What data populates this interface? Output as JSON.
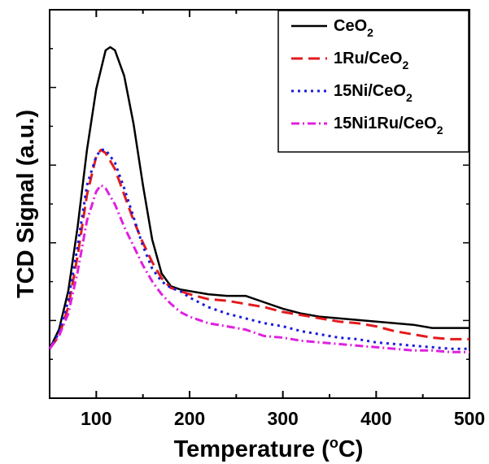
{
  "chart_data": {
    "type": "line",
    "xlabel": "Temperature (oC)",
    "xlabel_parts": {
      "main": "Temperature (",
      "sup": "o",
      "unit": "C)"
    },
    "ylabel": "TCD Signal (a.u.)",
    "xlim": [
      50,
      500
    ],
    "ylim": [
      0,
      1
    ],
    "x_ticks": [
      100,
      200,
      300,
      400,
      500
    ],
    "x_tick_labels": [
      "100",
      "200",
      "300",
      "400",
      "500"
    ],
    "y_ticks": [],
    "grid": false,
    "legend_position": "top-right",
    "series": [
      {
        "name": "CeO2",
        "name_parts": {
          "main": "CeO",
          "sub": "2",
          "tail": ""
        },
        "color": "#000000",
        "dash": "solid",
        "x": [
          50,
          60,
          70,
          80,
          90,
          100,
          110,
          115,
          120,
          130,
          140,
          150,
          160,
          170,
          180,
          190,
          200,
          220,
          240,
          260,
          280,
          300,
          320,
          340,
          360,
          380,
          400,
          420,
          440,
          460,
          480,
          500
        ],
        "y": [
          0.06,
          0.12,
          0.24,
          0.44,
          0.68,
          0.87,
          0.99,
          1.0,
          0.99,
          0.91,
          0.76,
          0.57,
          0.4,
          0.295,
          0.255,
          0.245,
          0.24,
          0.23,
          0.225,
          0.225,
          0.205,
          0.185,
          0.17,
          0.16,
          0.155,
          0.15,
          0.145,
          0.14,
          0.135,
          0.125,
          0.125,
          0.125
        ]
      },
      {
        "name": "1Ru/CeO2",
        "name_parts": {
          "main": "1Ru/CeO",
          "sub": "2",
          "tail": ""
        },
        "color": "#e41a1c",
        "dash": "14,7",
        "x": [
          50,
          60,
          70,
          80,
          90,
          100,
          105,
          110,
          120,
          130,
          140,
          150,
          160,
          170,
          180,
          190,
          200,
          220,
          240,
          260,
          280,
          300,
          320,
          340,
          360,
          380,
          400,
          420,
          440,
          460,
          480,
          500
        ],
        "y": [
          0.06,
          0.1,
          0.19,
          0.35,
          0.54,
          0.66,
          0.68,
          0.67,
          0.62,
          0.54,
          0.46,
          0.39,
          0.33,
          0.28,
          0.25,
          0.24,
          0.23,
          0.215,
          0.21,
          0.2,
          0.19,
          0.175,
          0.165,
          0.155,
          0.145,
          0.14,
          0.13,
          0.115,
          0.105,
          0.095,
          0.09,
          0.09
        ]
      },
      {
        "name": "15Ni/CeO2",
        "name_parts": {
          "main": "15Ni/CeO",
          "sub": "2",
          "tail": ""
        },
        "color": "#1a1adb",
        "dash": "3,5",
        "x": [
          50,
          60,
          70,
          80,
          90,
          100,
          105,
          110,
          120,
          130,
          140,
          150,
          160,
          170,
          180,
          190,
          200,
          220,
          240,
          260,
          280,
          300,
          320,
          340,
          360,
          380,
          400,
          420,
          440,
          460,
          480,
          500
        ],
        "y": [
          0.06,
          0.11,
          0.21,
          0.38,
          0.57,
          0.66,
          0.68,
          0.68,
          0.64,
          0.56,
          0.47,
          0.38,
          0.31,
          0.27,
          0.25,
          0.24,
          0.22,
          0.19,
          0.17,
          0.155,
          0.14,
          0.13,
          0.115,
          0.105,
          0.095,
          0.09,
          0.08,
          0.075,
          0.07,
          0.065,
          0.06,
          0.06
        ]
      },
      {
        "name": "15Ni1Ru/CeO2",
        "name_parts": {
          "main": "15Ni1Ru/CeO",
          "sub": "2",
          "tail": ""
        },
        "color": "#e020e0",
        "dash": "10,4,2,4",
        "x": [
          50,
          60,
          70,
          80,
          90,
          100,
          105,
          110,
          120,
          130,
          140,
          150,
          160,
          170,
          180,
          190,
          200,
          220,
          240,
          260,
          280,
          300,
          320,
          340,
          360,
          380,
          400,
          420,
          440,
          460,
          480,
          500
        ],
        "y": [
          0.06,
          0.1,
          0.17,
          0.3,
          0.46,
          0.55,
          0.57,
          0.56,
          0.51,
          0.44,
          0.38,
          0.32,
          0.27,
          0.23,
          0.2,
          0.175,
          0.16,
          0.14,
          0.13,
          0.12,
          0.1,
          0.095,
          0.085,
          0.08,
          0.075,
          0.07,
          0.065,
          0.06,
          0.055,
          0.055,
          0.05,
          0.05
        ]
      }
    ]
  }
}
